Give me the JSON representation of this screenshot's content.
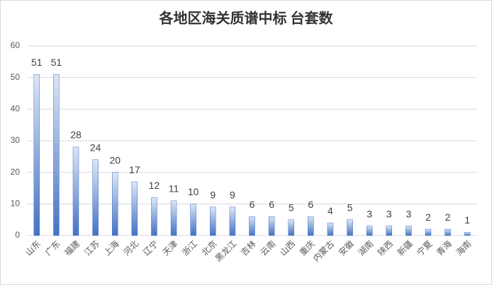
{
  "chart_data": {
    "type": "bar",
    "title": "各地区海关质谱中标 台套数",
    "categories": [
      "山东",
      "广东",
      "福建",
      "江苏",
      "上海",
      "河北",
      "辽宁",
      "天津",
      "浙江",
      "北京",
      "黑龙江",
      "吉林",
      "云南",
      "山西",
      "重庆",
      "内蒙古",
      "安徽",
      "湖南",
      "陕西",
      "新疆",
      "宁夏",
      "青海",
      "海南"
    ],
    "values": [
      51,
      51,
      28,
      24,
      20,
      17,
      12,
      11,
      10,
      9,
      9,
      6,
      6,
      5,
      6,
      4,
      5,
      3,
      3,
      3,
      2,
      2,
      1
    ],
    "color": "#4472c4",
    "ylim": [
      0,
      60
    ],
    "yticks": [
      0,
      10,
      20,
      30,
      40,
      50,
      60
    ],
    "grid": true
  }
}
